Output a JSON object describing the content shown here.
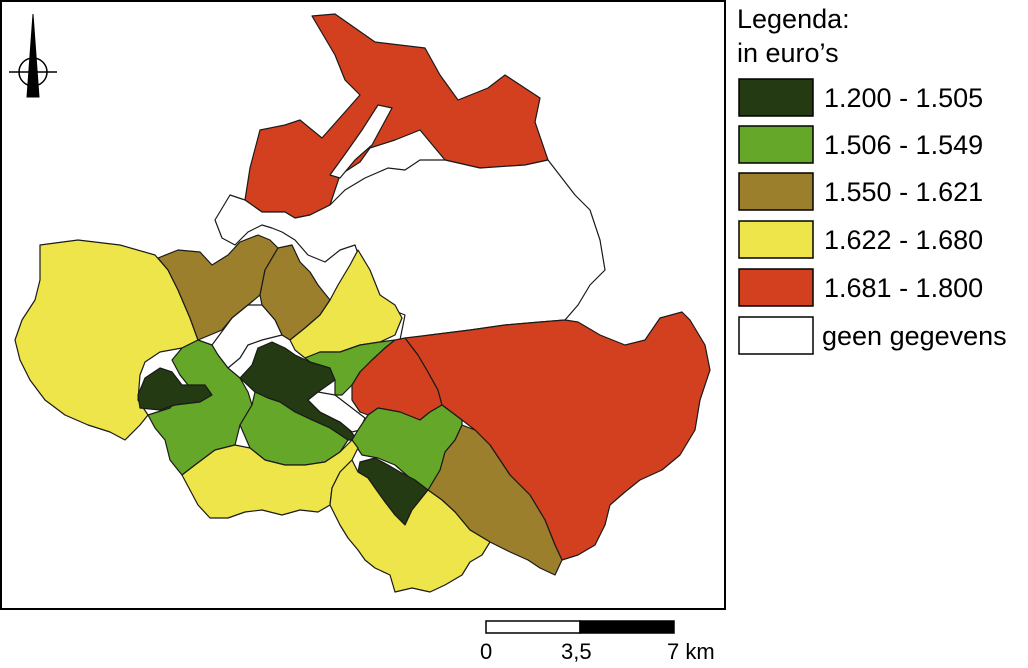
{
  "legend": {
    "title_line1": "Legenda:",
    "title_line2": "in euro’s",
    "classes": [
      {
        "label": "1.200 - 1.505",
        "color": "#243a12"
      },
      {
        "label": "1.506 - 1.549",
        "color": "#65a728"
      },
      {
        "label": "1.550 - 1.621",
        "color": "#9b7f2c"
      },
      {
        "label": "1.622 - 1.680",
        "color": "#ede54a"
      },
      {
        "label": "1.681 - 1.800",
        "color": "#d2401f"
      },
      {
        "label": "geen gegevens",
        "color": "#ffffff"
      }
    ]
  },
  "scale_bar": {
    "labels": [
      "0",
      "3,5",
      "7 km"
    ]
  },
  "north_arrow": {
    "icon": "north-arrow-icon"
  }
}
